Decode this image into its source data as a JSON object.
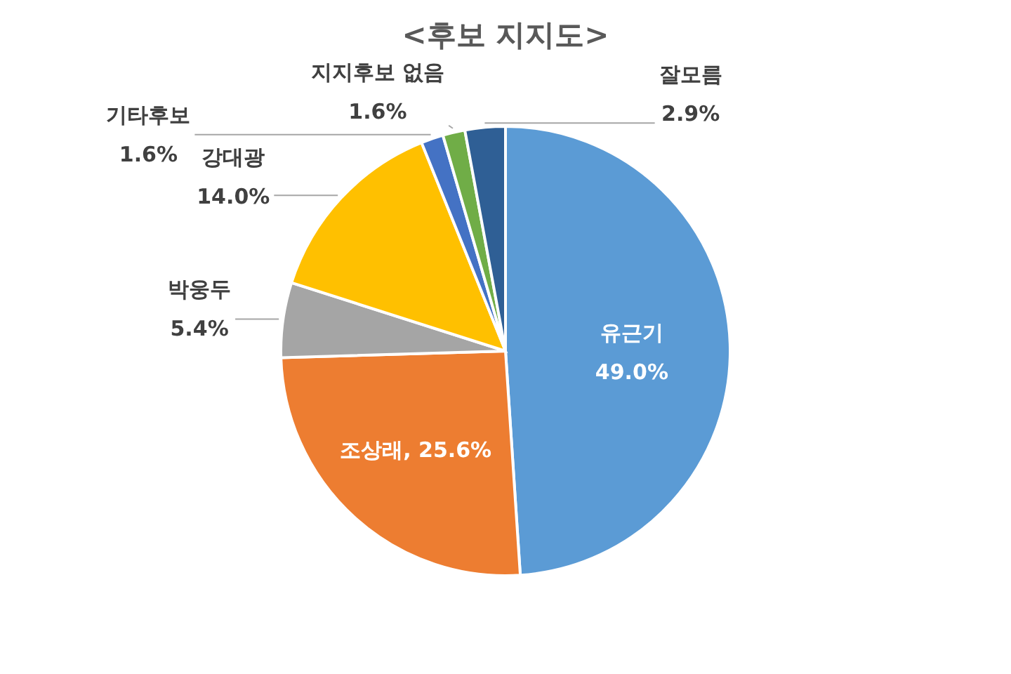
{
  "chart_data": {
    "type": "pie",
    "title": "<후보 지지도>",
    "categories": [
      "유근기",
      "조상래",
      "박웅두",
      "강대광",
      "기타후보",
      "지지후보 없음",
      "잘모름"
    ],
    "values": [
      49.0,
      25.6,
      5.4,
      14.0,
      1.6,
      1.6,
      2.9
    ],
    "colors": [
      "#5b9bd5",
      "#ed7d31",
      "#a5a5a5",
      "#ffc000",
      "#4472c4",
      "#70ad47",
      "#2f5f95"
    ],
    "value_labels": [
      "49.0%",
      "25.6%",
      "5.4%",
      "14.0%",
      "1.6%",
      "1.6%",
      "2.9%"
    ]
  }
}
